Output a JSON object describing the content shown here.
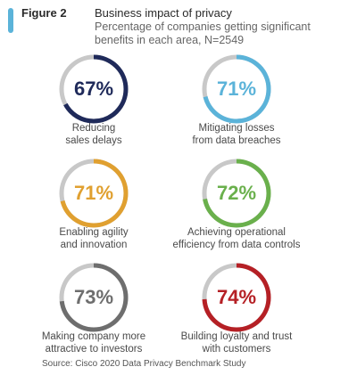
{
  "header": {
    "figure_label": "Figure 2",
    "title": "Business impact of privacy",
    "subtitle": "Percentage of companies getting significant benefits in each area, N=2549",
    "accent_color": "#5bb3d9"
  },
  "chart_data": {
    "type": "donut",
    "title": "Business impact of privacy",
    "subtitle": "Percentage of companies getting significant benefits in each area, N=2549",
    "unit": "%",
    "track_color": "#c8c8c8",
    "items": [
      {
        "label": "Reducing sales delays",
        "lines": [
          "Reducing",
          "sales delays"
        ],
        "value": 67,
        "display": "67%",
        "color": "#1f2a5a"
      },
      {
        "label": "Mitigating losses from data breaches",
        "lines": [
          "Mitigating losses",
          "from data breaches"
        ],
        "value": 71,
        "display": "71%",
        "color": "#5bb3d9"
      },
      {
        "label": "Enabling agility and innovation",
        "lines": [
          "Enabling agility",
          "and innovation"
        ],
        "value": 71,
        "display": "71%",
        "color": "#e0a030"
      },
      {
        "label": "Achieving operational efficiency from data controls",
        "lines": [
          "Achieving operational",
          "efficiency from data controls"
        ],
        "value": 72,
        "display": "72%",
        "color": "#6ab04c"
      },
      {
        "label": "Making company more attractive to investors",
        "lines": [
          "Making company more",
          "attractive to investors"
        ],
        "value": 73,
        "display": "73%",
        "color": "#6e6e6e"
      },
      {
        "label": "Building loyalty and trust with customers",
        "lines": [
          "Building loyalty and trust",
          "with customers"
        ],
        "value": 74,
        "display": "74%",
        "color": "#b52025"
      }
    ]
  },
  "footer": {
    "source": "Source:  Cisco 2020 Data Privacy Benchmark Study"
  }
}
